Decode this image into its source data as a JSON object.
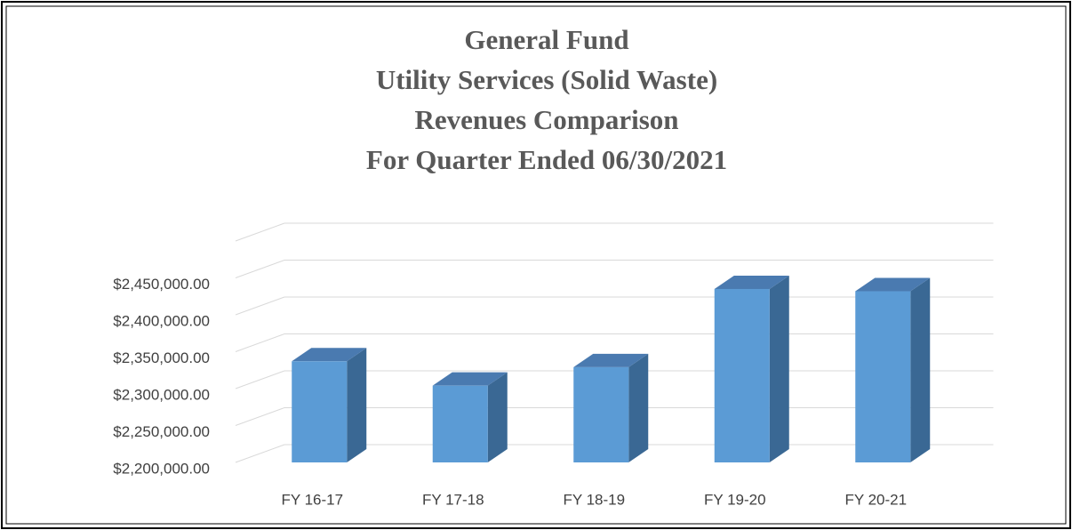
{
  "chart_data": {
    "type": "bar3d",
    "title": [
      "General Fund",
      "Utility Services (Solid Waste)",
      "Revenues Comparison",
      "For Quarter Ended 06/30/2021"
    ],
    "categories": [
      "FY 16-17",
      "FY 17-18",
      "FY 18-19",
      "FY 19-20",
      "FY 20-21"
    ],
    "values": [
      2337000,
      2304000,
      2329000,
      2435000,
      2432000
    ],
    "color": "#5b9bd5",
    "ylim": [
      2200000,
      2500000
    ],
    "yticks": [
      {
        "value": 2200000,
        "label": "$2,200,000.00"
      },
      {
        "value": 2250000,
        "label": "$2,250,000.00"
      },
      {
        "value": 2300000,
        "label": "$2,300,000.00"
      },
      {
        "value": 2350000,
        "label": "$2,350,000.00"
      },
      {
        "value": 2400000,
        "label": "$2,400,000.00"
      },
      {
        "value": 2450000,
        "label": "$2,450,000.00"
      }
    ],
    "grid": true
  }
}
